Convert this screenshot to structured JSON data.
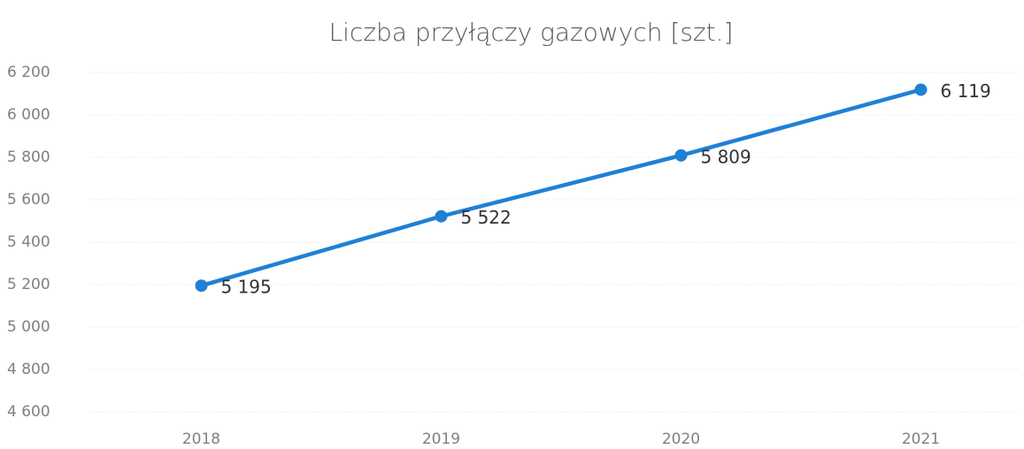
{
  "chart_data": {
    "type": "line",
    "title": "Liczba przyłączy gazowych [szt.]",
    "categories": [
      "2018",
      "2019",
      "2020",
      "2021"
    ],
    "series": [
      {
        "name": "Liczba przyłączy gazowych",
        "color": "#1f80d6",
        "values": [
          5195,
          5522,
          5809,
          6119
        ],
        "value_labels": [
          "5 195",
          "5 522",
          "5 809",
          "6 119"
        ]
      }
    ],
    "ylim": [
      4600,
      6200
    ],
    "yticks": [
      {
        "value": 4600,
        "label": "4 600"
      },
      {
        "value": 4800,
        "label": "4 800"
      },
      {
        "value": 5000,
        "label": "5 000"
      },
      {
        "value": 5200,
        "label": "5 200"
      },
      {
        "value": 5400,
        "label": "5 400"
      },
      {
        "value": 5600,
        "label": "5 600"
      },
      {
        "value": 5800,
        "label": "5 800"
      },
      {
        "value": 6000,
        "label": "6 000"
      },
      {
        "value": 6200,
        "label": "6 200"
      }
    ],
    "grid": true
  }
}
